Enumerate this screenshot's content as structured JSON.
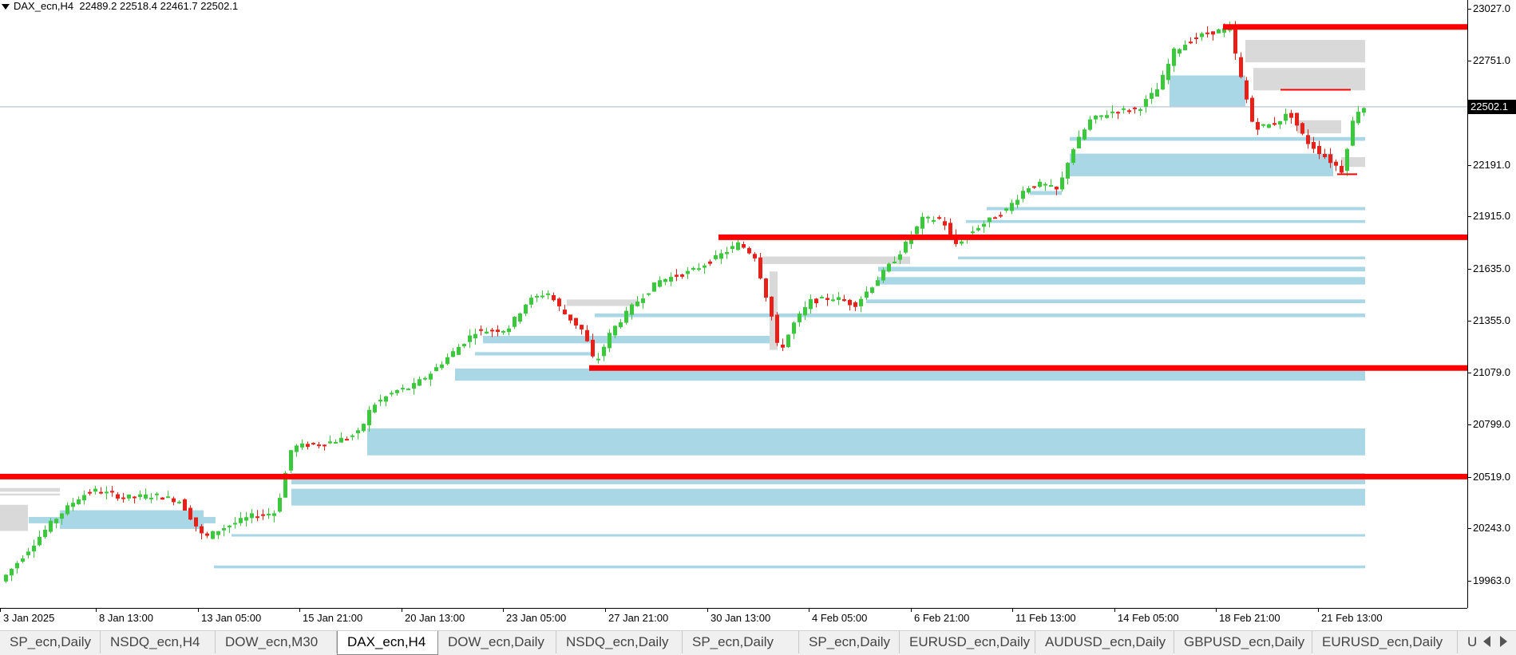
{
  "header": {
    "symbol": "DAX_ecn,H4",
    "ohlc": "22489.2 22518.4 22461.7 22502.1"
  },
  "price_axis": {
    "ticks": [
      "23027.0",
      "22751.0",
      "22191.0",
      "21915.0",
      "21635.0",
      "21355.0",
      "21079.0",
      "20799.0",
      "20519.0",
      "20243.0",
      "19963.0"
    ],
    "current_price": "22502.1"
  },
  "time_axis": {
    "labels": [
      "3 Jan 2025",
      "8 Jan 13:00",
      "13 Jan 05:00",
      "15 Jan 21:00",
      "20 Jan 13:00",
      "23 Jan 05:00",
      "27 Jan 21:00",
      "30 Jan 13:00",
      "4 Feb 05:00",
      "6 Feb 21:00",
      "11 Feb 13:00",
      "14 Feb 05:00",
      "18 Feb 21:00",
      "21 Feb 13:00"
    ]
  },
  "tabs": [
    {
      "label": "SP_ecn,Daily",
      "active": false
    },
    {
      "label": "NSDQ_ecn,H4",
      "active": false
    },
    {
      "label": "DOW_ecn,M30",
      "active": false
    },
    {
      "label": "DAX_ecn,H4",
      "active": true
    },
    {
      "label": "DOW_ecn,Daily",
      "active": false
    },
    {
      "label": "NSDQ_ecn,Daily",
      "active": false
    },
    {
      "label": "SP_ecn,Daily",
      "active": false
    },
    {
      "label": "SP_ecn,Daily",
      "active": false
    },
    {
      "label": "EURUSD_ecn,Daily",
      "active": false
    },
    {
      "label": "AUDUSD_ecn,Daily",
      "active": false
    },
    {
      "label": "GBPUSD_ecn,Daily",
      "active": false
    },
    {
      "label": "EURUSD_ecn,Daily",
      "active": false
    },
    {
      "label": "U",
      "active": false
    }
  ],
  "colors": {
    "bull": "#3cc83c",
    "bear": "#e8201a",
    "zone_blue": "#a9d7e6",
    "zone_gray": "#d9d9d9",
    "level_red": "#ff0000",
    "price_line": "#a9b7c9"
  },
  "chart_data": {
    "type": "candlestick",
    "title": "DAX_ecn,H4",
    "ylim": [
      19860,
      23090
    ],
    "price_ticks": [
      23027,
      22751,
      22191,
      21915,
      21635,
      21355,
      21079,
      20799,
      20519,
      20243,
      19963
    ],
    "current_price": 22502.1,
    "horizontal_levels": [
      {
        "price": 22930,
        "thickness": "thick",
        "from": "18 Feb 21:00"
      },
      {
        "price": 22593,
        "thickness": "thin",
        "from": "19 Feb"
      },
      {
        "price": 22141,
        "thickness": "thin",
        "from": "21 Feb 05:00"
      },
      {
        "price": 21803,
        "thickness": "thick",
        "from": "30 Jan"
      },
      {
        "price": 21103,
        "thickness": "thick",
        "from": "24 Jan"
      },
      {
        "price": 20521,
        "thickness": "thick",
        "from": "3 Jan 2025"
      }
    ],
    "demand_zones_blue": [
      [
        22670,
        22505
      ],
      [
        22251,
        22130
      ],
      [
        22340,
        22320
      ],
      [
        22051,
        22030
      ],
      [
        21965,
        21948
      ],
      [
        21895,
        21880
      ],
      [
        21700,
        21685
      ],
      [
        21645,
        21620
      ],
      [
        21590,
        21550
      ],
      [
        21470,
        21450
      ],
      [
        21395,
        21375
      ],
      [
        21275,
        21235
      ],
      [
        21188,
        21170
      ],
      [
        21100,
        21035
      ],
      [
        20779,
        20635
      ],
      [
        20540,
        20480
      ],
      [
        20456,
        20366
      ],
      [
        20341,
        20241
      ],
      [
        20305,
        20271
      ],
      [
        20213,
        20200
      ],
      [
        20045,
        20030
      ]
    ],
    "supply_zones_gray": [
      [
        22860,
        22740
      ],
      [
        22710,
        22590
      ],
      [
        22430,
        22360
      ],
      [
        22232,
        22180
      ],
      [
        21700,
        21660
      ],
      [
        21470,
        21435
      ]
    ],
    "candles_ohlc_sample": [
      {
        "t": "3 Jan 2025",
        "o": 19950,
        "h": 20060,
        "l": 19880,
        "c": 20030
      },
      {
        "t": "8 Jan 13:00",
        "o": 20400,
        "h": 20540,
        "l": 20380,
        "c": 20470
      },
      {
        "t": "13 Jan 05:00",
        "o": 20200,
        "h": 20260,
        "l": 20080,
        "c": 20120
      },
      {
        "t": "15 Jan 21:00",
        "o": 20650,
        "h": 20720,
        "l": 20620,
        "c": 20680
      },
      {
        "t": "20 Jan 13:00",
        "o": 20980,
        "h": 21050,
        "l": 20920,
        "c": 21000
      },
      {
        "t": "23 Jan 05:00",
        "o": 21500,
        "h": 21560,
        "l": 21460,
        "c": 21520
      },
      {
        "t": "27 Jan 21:00",
        "o": 21420,
        "h": 21470,
        "l": 21380,
        "c": 21440
      },
      {
        "t": "30 Jan 13:00",
        "o": 21770,
        "h": 21830,
        "l": 21720,
        "c": 21760
      },
      {
        "t": "4 Feb 05:00",
        "o": 21450,
        "h": 21530,
        "l": 21400,
        "c": 21480
      },
      {
        "t": "6 Feb 21:00",
        "o": 21860,
        "h": 21930,
        "l": 21820,
        "c": 21880
      },
      {
        "t": "11 Feb 13:00",
        "o": 22100,
        "h": 22140,
        "l": 22010,
        "c": 22080
      },
      {
        "t": "14 Feb 05:00",
        "o": 22500,
        "h": 22540,
        "l": 22470,
        "c": 22520
      },
      {
        "t": "18 Feb 21:00",
        "o": 22720,
        "h": 22930,
        "l": 22500,
        "c": 22520
      },
      {
        "t": "21 Feb 13:00",
        "o": 22230,
        "h": 22600,
        "l": 22210,
        "c": 22450
      }
    ]
  }
}
